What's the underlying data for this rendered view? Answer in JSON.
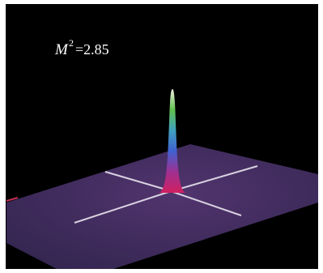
{
  "annotation": {
    "symbol": "M",
    "superscript": "2",
    "text": "=2.85"
  }
}
